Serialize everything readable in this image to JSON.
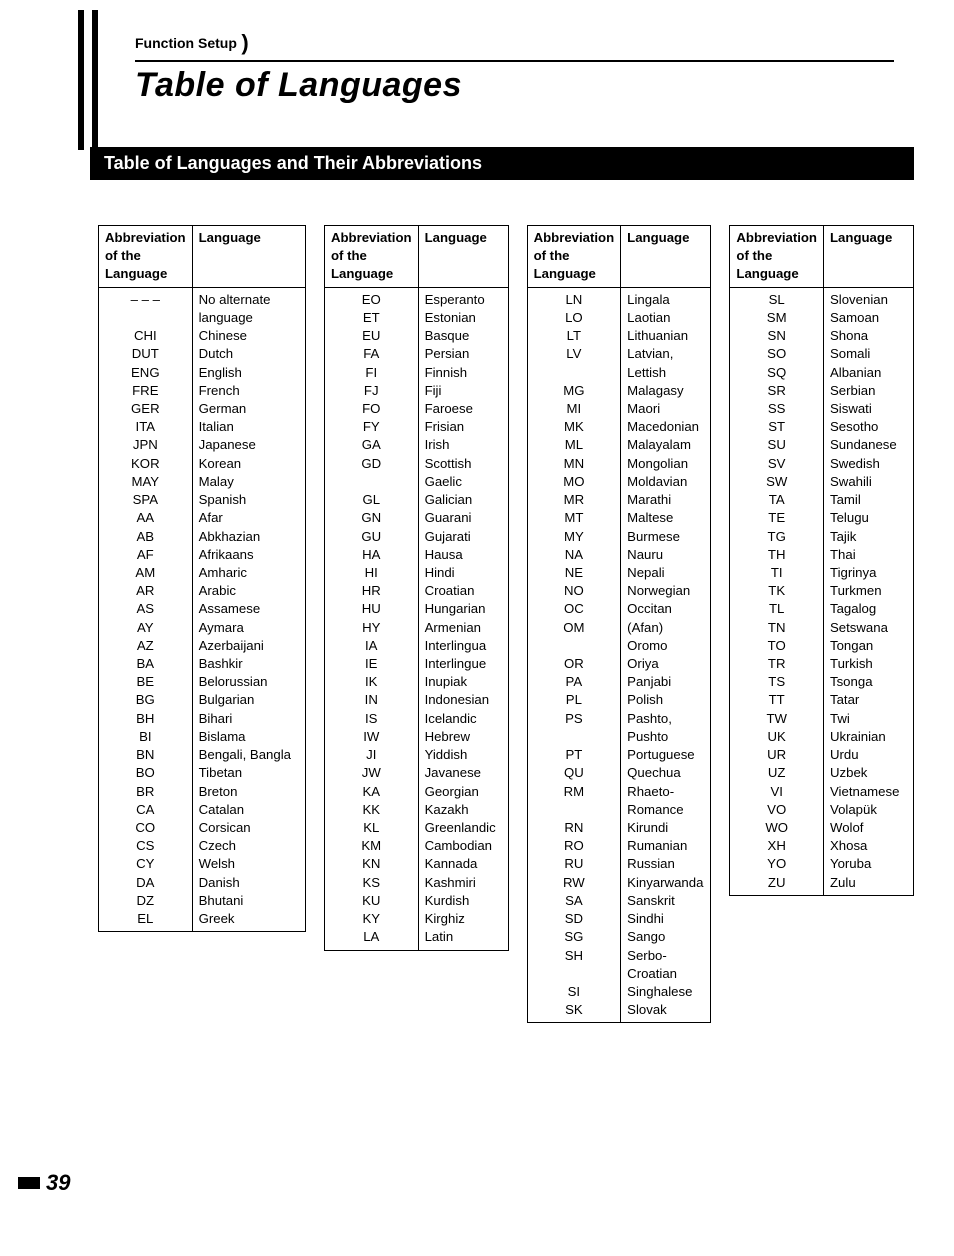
{
  "breadcrumb": "Function Setup",
  "title": "Table of Languages",
  "section_heading": "Table of Languages and Their Abbreviations",
  "col_headers": {
    "abbr": "Abbreviation of the Language",
    "lang": "Language"
  },
  "page_number": "39",
  "tables": [
    [
      {
        "abbr": "– – –",
        "name": "No alternate language"
      },
      {
        "abbr": "CHI",
        "name": "Chinese"
      },
      {
        "abbr": "DUT",
        "name": "Dutch"
      },
      {
        "abbr": "ENG",
        "name": "English"
      },
      {
        "abbr": "FRE",
        "name": "French"
      },
      {
        "abbr": "GER",
        "name": "German"
      },
      {
        "abbr": "ITA",
        "name": "Italian"
      },
      {
        "abbr": "JPN",
        "name": "Japanese"
      },
      {
        "abbr": "KOR",
        "name": "Korean"
      },
      {
        "abbr": "MAY",
        "name": "Malay"
      },
      {
        "abbr": "SPA",
        "name": "Spanish"
      },
      {
        "abbr": "AA",
        "name": "Afar"
      },
      {
        "abbr": "AB",
        "name": "Abkhazian"
      },
      {
        "abbr": "AF",
        "name": "Afrikaans"
      },
      {
        "abbr": "AM",
        "name": "Amharic"
      },
      {
        "abbr": "AR",
        "name": "Arabic"
      },
      {
        "abbr": "AS",
        "name": "Assamese"
      },
      {
        "abbr": "AY",
        "name": "Aymara"
      },
      {
        "abbr": "AZ",
        "name": "Azerbaijani"
      },
      {
        "abbr": "BA",
        "name": "Bashkir"
      },
      {
        "abbr": "BE",
        "name": "Belorussian"
      },
      {
        "abbr": "BG",
        "name": "Bulgarian"
      },
      {
        "abbr": "BH",
        "name": "Bihari"
      },
      {
        "abbr": "BI",
        "name": "Bislama"
      },
      {
        "abbr": "BN",
        "name": "Bengali, Bangla"
      },
      {
        "abbr": "BO",
        "name": "Tibetan"
      },
      {
        "abbr": "BR",
        "name": "Breton"
      },
      {
        "abbr": "CA",
        "name": "Catalan"
      },
      {
        "abbr": "CO",
        "name": "Corsican"
      },
      {
        "abbr": "CS",
        "name": "Czech"
      },
      {
        "abbr": "CY",
        "name": "Welsh"
      },
      {
        "abbr": "DA",
        "name": "Danish"
      },
      {
        "abbr": "DZ",
        "name": "Bhutani"
      },
      {
        "abbr": "EL",
        "name": "Greek"
      }
    ],
    [
      {
        "abbr": "EO",
        "name": "Esperanto"
      },
      {
        "abbr": "ET",
        "name": "Estonian"
      },
      {
        "abbr": "EU",
        "name": "Basque"
      },
      {
        "abbr": "FA",
        "name": "Persian"
      },
      {
        "abbr": "FI",
        "name": "Finnish"
      },
      {
        "abbr": "FJ",
        "name": "Fiji"
      },
      {
        "abbr": "FO",
        "name": "Faroese"
      },
      {
        "abbr": "FY",
        "name": "Frisian"
      },
      {
        "abbr": "GA",
        "name": "Irish"
      },
      {
        "abbr": "GD",
        "name": "Scottish Gaelic"
      },
      {
        "abbr": "GL",
        "name": "Galician"
      },
      {
        "abbr": "GN",
        "name": "Guarani"
      },
      {
        "abbr": "GU",
        "name": "Gujarati"
      },
      {
        "abbr": "HA",
        "name": "Hausa"
      },
      {
        "abbr": "HI",
        "name": "Hindi"
      },
      {
        "abbr": "HR",
        "name": "Croatian"
      },
      {
        "abbr": "HU",
        "name": "Hungarian"
      },
      {
        "abbr": "HY",
        "name": "Armenian"
      },
      {
        "abbr": "IA",
        "name": "Interlingua"
      },
      {
        "abbr": "IE",
        "name": "Interlingue"
      },
      {
        "abbr": "IK",
        "name": "Inupiak"
      },
      {
        "abbr": "IN",
        "name": "Indonesian"
      },
      {
        "abbr": "IS",
        "name": "Icelandic"
      },
      {
        "abbr": "IW",
        "name": "Hebrew"
      },
      {
        "abbr": "JI",
        "name": "Yiddish"
      },
      {
        "abbr": "JW",
        "name": "Javanese"
      },
      {
        "abbr": "KA",
        "name": "Georgian"
      },
      {
        "abbr": "KK",
        "name": "Kazakh"
      },
      {
        "abbr": "KL",
        "name": "Greenlandic"
      },
      {
        "abbr": "KM",
        "name": "Cambodian"
      },
      {
        "abbr": "KN",
        "name": "Kannada"
      },
      {
        "abbr": "KS",
        "name": "Kashmiri"
      },
      {
        "abbr": "KU",
        "name": "Kurdish"
      },
      {
        "abbr": "KY",
        "name": "Kirghiz"
      },
      {
        "abbr": "LA",
        "name": "Latin"
      }
    ],
    [
      {
        "abbr": "LN",
        "name": "Lingala"
      },
      {
        "abbr": "LO",
        "name": "Laotian"
      },
      {
        "abbr": "LT",
        "name": "Lithuanian"
      },
      {
        "abbr": "LV",
        "name": "Latvian, Lettish"
      },
      {
        "abbr": "MG",
        "name": "Malagasy"
      },
      {
        "abbr": "MI",
        "name": "Maori"
      },
      {
        "abbr": "MK",
        "name": "Macedonian"
      },
      {
        "abbr": "ML",
        "name": "Malayalam"
      },
      {
        "abbr": "MN",
        "name": "Mongolian"
      },
      {
        "abbr": "MO",
        "name": "Moldavian"
      },
      {
        "abbr": "MR",
        "name": "Marathi"
      },
      {
        "abbr": "MT",
        "name": "Maltese"
      },
      {
        "abbr": "MY",
        "name": "Burmese"
      },
      {
        "abbr": "NA",
        "name": "Nauru"
      },
      {
        "abbr": "NE",
        "name": "Nepali"
      },
      {
        "abbr": "NO",
        "name": "Norwegian"
      },
      {
        "abbr": "OC",
        "name": "Occitan"
      },
      {
        "abbr": "OM",
        "name": "(Afan) Oromo"
      },
      {
        "abbr": "OR",
        "name": "Oriya"
      },
      {
        "abbr": "PA",
        "name": "Panjabi"
      },
      {
        "abbr": "PL",
        "name": "Polish"
      },
      {
        "abbr": "PS",
        "name": "Pashto, Pushto"
      },
      {
        "abbr": "PT",
        "name": "Portuguese"
      },
      {
        "abbr": "QU",
        "name": "Quechua"
      },
      {
        "abbr": "RM",
        "name": "Rhaeto-Romance"
      },
      {
        "abbr": "RN",
        "name": "Kirundi"
      },
      {
        "abbr": "RO",
        "name": "Rumanian"
      },
      {
        "abbr": "RU",
        "name": "Russian"
      },
      {
        "abbr": "RW",
        "name": "Kinyarwanda"
      },
      {
        "abbr": "SA",
        "name": "Sanskrit"
      },
      {
        "abbr": "SD",
        "name": "Sindhi"
      },
      {
        "abbr": "SG",
        "name": "Sango"
      },
      {
        "abbr": "SH",
        "name": "Serbo-Croatian"
      },
      {
        "abbr": "SI",
        "name": "Singhalese"
      },
      {
        "abbr": "SK",
        "name": "Slovak"
      }
    ],
    [
      {
        "abbr": "SL",
        "name": "Slovenian"
      },
      {
        "abbr": "SM",
        "name": "Samoan"
      },
      {
        "abbr": "SN",
        "name": "Shona"
      },
      {
        "abbr": "SO",
        "name": "Somali"
      },
      {
        "abbr": "SQ",
        "name": "Albanian"
      },
      {
        "abbr": "SR",
        "name": "Serbian"
      },
      {
        "abbr": "SS",
        "name": "Siswati"
      },
      {
        "abbr": "ST",
        "name": "Sesotho"
      },
      {
        "abbr": "SU",
        "name": "Sundanese"
      },
      {
        "abbr": "SV",
        "name": "Swedish"
      },
      {
        "abbr": "SW",
        "name": "Swahili"
      },
      {
        "abbr": "TA",
        "name": "Tamil"
      },
      {
        "abbr": "TE",
        "name": "Telugu"
      },
      {
        "abbr": "TG",
        "name": "Tajik"
      },
      {
        "abbr": "TH",
        "name": "Thai"
      },
      {
        "abbr": "TI",
        "name": "Tigrinya"
      },
      {
        "abbr": "TK",
        "name": "Turkmen"
      },
      {
        "abbr": "TL",
        "name": "Tagalog"
      },
      {
        "abbr": "TN",
        "name": "Setswana"
      },
      {
        "abbr": "TO",
        "name": "Tongan"
      },
      {
        "abbr": "TR",
        "name": "Turkish"
      },
      {
        "abbr": "TS",
        "name": "Tsonga"
      },
      {
        "abbr": "TT",
        "name": "Tatar"
      },
      {
        "abbr": "TW",
        "name": "Twi"
      },
      {
        "abbr": "UK",
        "name": "Ukrainian"
      },
      {
        "abbr": "UR",
        "name": "Urdu"
      },
      {
        "abbr": "UZ",
        "name": "Uzbek"
      },
      {
        "abbr": "VI",
        "name": "Vietnamese"
      },
      {
        "abbr": "VO",
        "name": "Volapük"
      },
      {
        "abbr": "WO",
        "name": "Wolof"
      },
      {
        "abbr": "XH",
        "name": "Xhosa"
      },
      {
        "abbr": "YO",
        "name": "Yoruba"
      },
      {
        "abbr": "ZU",
        "name": "Zulu"
      }
    ]
  ]
}
